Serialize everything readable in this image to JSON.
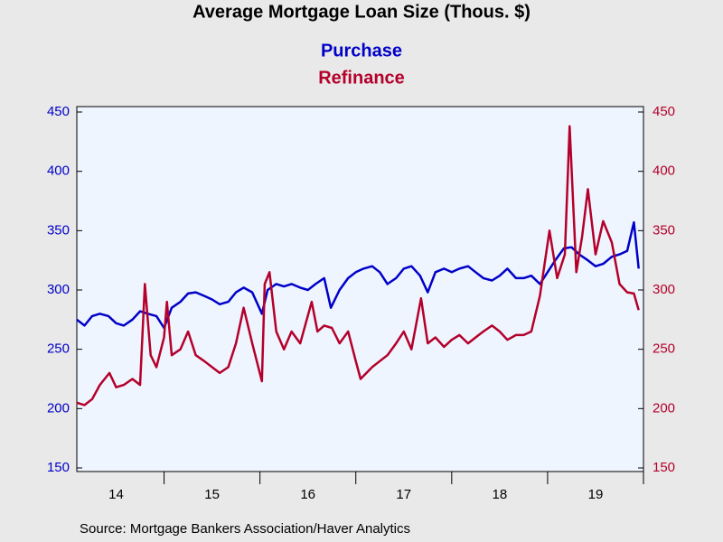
{
  "chart_data": {
    "type": "line",
    "title": "Average Mortgage Loan Size (Thous. $)",
    "source": "Source:  Mortgage Bankers Association/Haver Analytics",
    "xlim": [
      2014.09,
      2020.0
    ],
    "xticks": [
      {
        "value": 2014.5,
        "label": "14"
      },
      {
        "value": 2015.5,
        "label": "15"
      },
      {
        "value": 2016.5,
        "label": "16"
      },
      {
        "value": 2017.5,
        "label": "17"
      },
      {
        "value": 2018.5,
        "label": "18"
      },
      {
        "value": 2019.5,
        "label": "19"
      }
    ],
    "ylim": [
      150,
      450
    ],
    "yticks": [
      150,
      200,
      250,
      300,
      350,
      400,
      450
    ],
    "y2lim": [
      150,
      450
    ],
    "y2ticks": [
      150,
      200,
      250,
      300,
      350,
      400,
      450
    ],
    "series": [
      {
        "name": "Purchase",
        "color": "#0000c8",
        "x": [
          2014.09,
          2014.17,
          2014.25,
          2014.33,
          2014.42,
          2014.5,
          2014.58,
          2014.67,
          2014.75,
          2014.83,
          2014.92,
          2015.0,
          2015.08,
          2015.17,
          2015.25,
          2015.33,
          2015.42,
          2015.5,
          2015.58,
          2015.67,
          2015.75,
          2015.83,
          2015.92,
          2016.02,
          2016.08,
          2016.17,
          2016.25,
          2016.33,
          2016.42,
          2016.5,
          2016.58,
          2016.67,
          2016.74,
          2016.83,
          2016.92,
          2017.0,
          2017.08,
          2017.17,
          2017.25,
          2017.33,
          2017.42,
          2017.5,
          2017.58,
          2017.67,
          2017.75,
          2017.83,
          2017.92,
          2018.0,
          2018.08,
          2018.17,
          2018.25,
          2018.33,
          2018.42,
          2018.5,
          2018.58,
          2018.67,
          2018.75,
          2018.83,
          2018.92,
          2019.0,
          2019.08,
          2019.17,
          2019.25,
          2019.33,
          2019.42,
          2019.5,
          2019.58,
          2019.67,
          2019.75,
          2019.83,
          2019.9,
          2019.95
        ],
        "values": [
          275,
          270,
          278,
          280,
          278,
          272,
          270,
          275,
          282,
          280,
          278,
          268,
          285,
          290,
          297,
          298,
          295,
          292,
          288,
          290,
          298,
          302,
          298,
          280,
          300,
          305,
          303,
          305,
          302,
          300,
          305,
          310,
          285,
          300,
          310,
          315,
          318,
          320,
          315,
          305,
          310,
          318,
          320,
          312,
          298,
          315,
          318,
          315,
          318,
          320,
          315,
          310,
          308,
          312,
          318,
          310,
          310,
          312,
          305,
          315,
          325,
          335,
          336,
          330,
          325,
          320,
          322,
          328,
          330,
          333,
          357,
          318
        ]
      },
      {
        "name": "Refinance",
        "color": "#b4002a",
        "axis": "y2",
        "x": [
          2014.09,
          2014.17,
          2014.25,
          2014.33,
          2014.43,
          2014.5,
          2014.58,
          2014.67,
          2014.75,
          2014.8,
          2014.86,
          2014.92,
          2015.0,
          2015.03,
          2015.08,
          2015.17,
          2015.25,
          2015.33,
          2015.42,
          2015.5,
          2015.58,
          2015.67,
          2015.75,
          2015.83,
          2015.92,
          2016.02,
          2016.05,
          2016.1,
          2016.17,
          2016.25,
          2016.33,
          2016.42,
          2016.54,
          2016.6,
          2016.67,
          2016.75,
          2016.83,
          2016.92,
          2017.0,
          2017.05,
          2017.17,
          2017.25,
          2017.33,
          2017.42,
          2017.5,
          2017.58,
          2017.68,
          2017.75,
          2017.83,
          2017.92,
          2018.0,
          2018.08,
          2018.17,
          2018.25,
          2018.33,
          2018.42,
          2018.5,
          2018.58,
          2018.67,
          2018.75,
          2018.83,
          2018.92,
          2019.02,
          2019.1,
          2019.18,
          2019.23,
          2019.3,
          2019.36,
          2019.42,
          2019.5,
          2019.58,
          2019.67,
          2019.75,
          2019.83,
          2019.9,
          2019.95
        ],
        "values": [
          205,
          203,
          208,
          220,
          230,
          218,
          220,
          225,
          220,
          305,
          245,
          235,
          260,
          290,
          245,
          250,
          265,
          245,
          240,
          235,
          230,
          235,
          255,
          285,
          255,
          223,
          305,
          315,
          265,
          250,
          265,
          255,
          290,
          265,
          270,
          268,
          255,
          265,
          240,
          225,
          235,
          240,
          245,
          255,
          265,
          250,
          293,
          255,
          260,
          252,
          258,
          262,
          255,
          260,
          265,
          270,
          265,
          258,
          262,
          262,
          265,
          295,
          350,
          310,
          330,
          438,
          315,
          345,
          385,
          330,
          358,
          340,
          305,
          298,
          297,
          283
        ]
      }
    ]
  }
}
